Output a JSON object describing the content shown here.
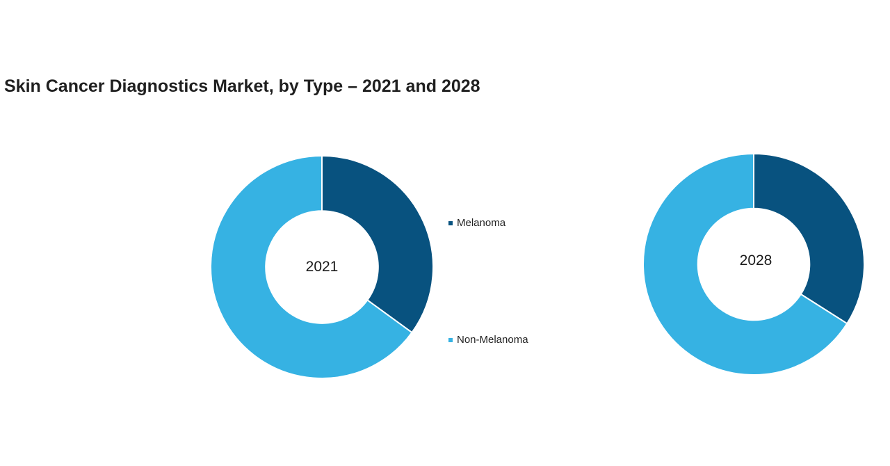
{
  "chart_data": [
    {
      "type": "pie",
      "title": "Skin Cancer Diagnostics Market, by Type – 2021 and 2028",
      "center_label": "2021",
      "categories": [
        "Melanoma",
        "Non-Melanoma"
      ],
      "values": [
        35,
        65
      ],
      "unit": "%",
      "colors": [
        "#08527f",
        "#36b2e3"
      ],
      "legend_position": "right"
    },
    {
      "type": "pie",
      "center_label": "2028",
      "categories": [
        "Melanoma",
        "Non-Melanoma"
      ],
      "values": [
        34,
        66
      ],
      "unit": "%",
      "colors": [
        "#08527f",
        "#36b2e3"
      ]
    }
  ],
  "legend": [
    {
      "label": "Melanoma",
      "color": "#08527f"
    },
    {
      "label": "Non-Melanoma",
      "color": "#36b2e3"
    }
  ]
}
